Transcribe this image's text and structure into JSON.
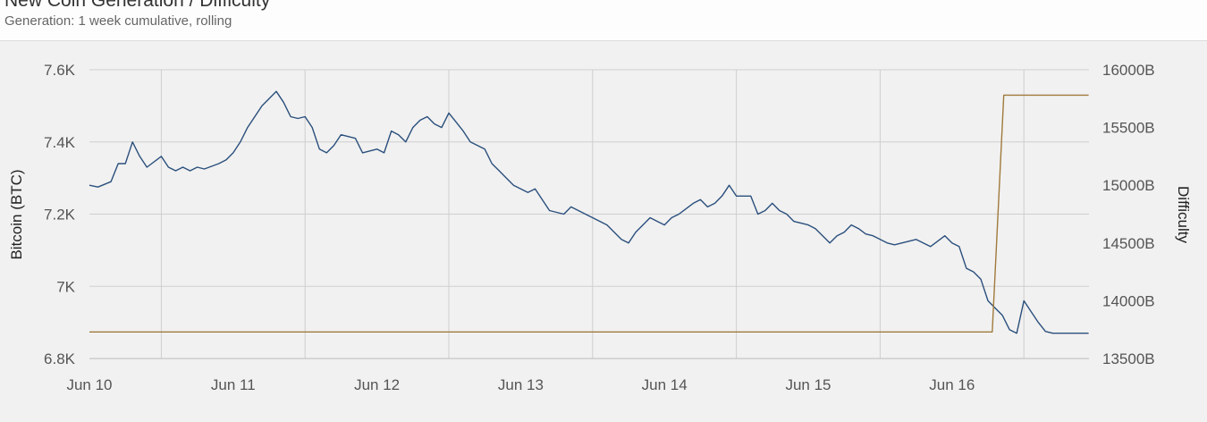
{
  "header": {
    "title": "New Coin Generation / Difficulty",
    "subtitle": "Generation: 1 week cumulative, rolling"
  },
  "colors": {
    "generation_line": "#2a4f7c",
    "difficulty_line": "#a07a3c",
    "grid": "#cfcfcf",
    "background": "#f1f1f1"
  },
  "chart_data": {
    "type": "line",
    "title": "New Coin Generation / Difficulty",
    "subtitle": "Generation: 1 week cumulative, rolling",
    "x_tick_labels": [
      "Jun 10",
      "Jun 11",
      "Jun 12",
      "Jun 13",
      "Jun 14",
      "Jun 15",
      "Jun 16"
    ],
    "xlim": [
      0,
      6.95
    ],
    "y_left": {
      "label": "Bitcoin (BTC)",
      "ticks": [
        "6.8K",
        "7K",
        "7.2K",
        "7.4K",
        "7.6K"
      ],
      "tick_values": [
        6800,
        7000,
        7200,
        7400,
        7600
      ],
      "range": [
        6800,
        7600
      ]
    },
    "y_right": {
      "label": "Difficulty",
      "ticks": [
        "13500B",
        "14000B",
        "14500B",
        "15000B",
        "15500B",
        "16000B"
      ],
      "tick_values": [
        13500,
        14000,
        14500,
        15000,
        15500,
        16000
      ],
      "range": [
        13500,
        16000
      ]
    },
    "grid": true,
    "series": [
      {
        "axis": "left",
        "x": [
          0.0,
          0.06,
          0.15,
          0.2,
          0.25,
          0.3,
          0.35,
          0.4,
          0.5,
          0.55,
          0.6,
          0.65,
          0.7,
          0.75,
          0.8,
          0.9,
          0.95,
          1.0,
          1.05,
          1.1,
          1.2,
          1.3,
          1.35,
          1.4,
          1.45,
          1.5,
          1.55,
          1.6,
          1.65,
          1.7,
          1.75,
          1.85,
          1.9,
          2.0,
          2.05,
          2.1,
          2.15,
          2.2,
          2.25,
          2.3,
          2.35,
          2.4,
          2.45,
          2.5,
          2.6,
          2.65,
          2.75,
          2.8,
          2.85,
          2.9,
          2.95,
          3.0,
          3.05,
          3.1,
          3.2,
          3.3,
          3.35,
          3.45,
          3.5,
          3.6,
          3.7,
          3.75,
          3.8,
          3.85,
          3.9,
          3.95,
          4.0,
          4.05,
          4.1,
          4.2,
          4.25,
          4.3,
          4.35,
          4.4,
          4.45,
          4.5,
          4.6,
          4.65,
          4.7,
          4.75,
          4.8,
          4.85,
          4.9,
          4.95,
          5.0,
          5.05,
          5.1,
          5.15,
          5.2,
          5.25,
          5.3,
          5.35,
          5.4,
          5.45,
          5.5,
          5.55,
          5.6,
          5.65,
          5.7,
          5.75,
          5.8,
          5.85,
          5.9,
          5.95,
          6.0,
          6.05,
          6.1,
          6.15,
          6.2,
          6.25,
          6.3,
          6.35,
          6.4,
          6.45,
          6.5,
          6.55,
          6.6,
          6.65,
          6.7,
          6.75,
          6.8,
          6.85,
          6.9,
          6.95
        ],
        "values": [
          7280,
          7275,
          7290,
          7340,
          7340,
          7400,
          7360,
          7330,
          7360,
          7330,
          7320,
          7330,
          7320,
          7330,
          7325,
          7340,
          7350,
          7370,
          7400,
          7440,
          7500,
          7540,
          7510,
          7470,
          7465,
          7470,
          7440,
          7380,
          7370,
          7390,
          7420,
          7410,
          7370,
          7380,
          7370,
          7430,
          7420,
          7400,
          7440,
          7460,
          7470,
          7450,
          7440,
          7480,
          7430,
          7400,
          7380,
          7340,
          7320,
          7300,
          7280,
          7270,
          7260,
          7270,
          7210,
          7200,
          7220,
          7200,
          7190,
          7170,
          7130,
          7120,
          7150,
          7170,
          7190,
          7180,
          7170,
          7190,
          7200,
          7230,
          7240,
          7220,
          7230,
          7250,
          7280,
          7250,
          7250,
          7200,
          7210,
          7230,
          7210,
          7200,
          7180,
          7175,
          7170,
          7160,
          7140,
          7120,
          7140,
          7150,
          7170,
          7160,
          7145,
          7140,
          7130,
          7120,
          7115,
          7120,
          7125,
          7130,
          7120,
          7110,
          7125,
          7140,
          7120,
          7110,
          7050,
          7040,
          7020,
          6960,
          6940,
          6920,
          6880,
          6870,
          6960,
          6930,
          6900,
          6875,
          6870,
          6870,
          6870,
          6870,
          6870,
          6870
        ],
        "name": ""
      },
      {
        "axis": "right",
        "x": [
          0.0,
          6.28,
          6.36,
          6.95
        ],
        "values": [
          13730,
          13730,
          15780,
          15780
        ],
        "name": ""
      }
    ]
  }
}
